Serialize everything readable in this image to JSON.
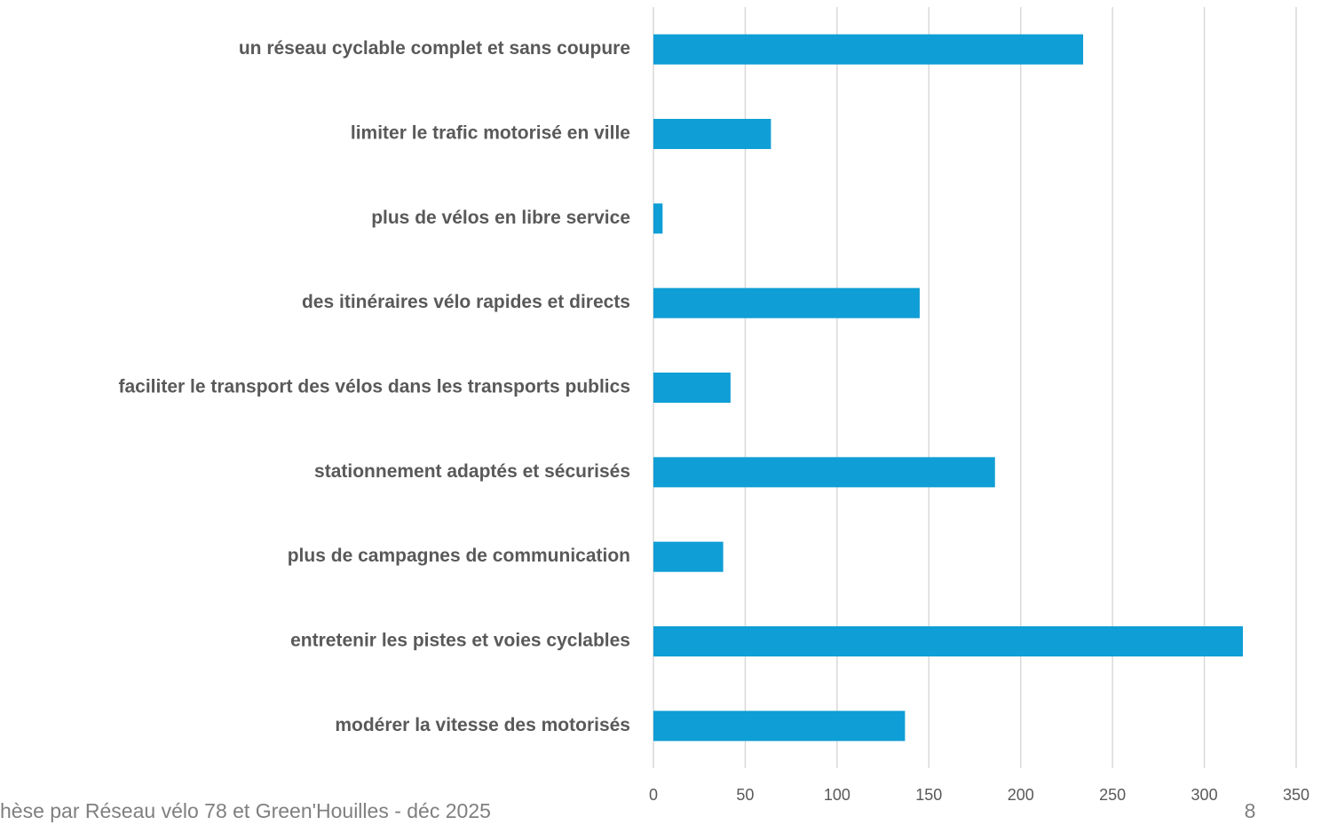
{
  "chart_data": {
    "type": "barh",
    "categories": [
      "un réseau cyclable complet et sans coupure",
      "limiter le trafic motorisé en ville",
      "plus de vélos en libre service",
      "des itinéraires vélo rapides et directs",
      "faciliter le transport des vélos dans les transports publics",
      "stationnement adaptés et sécurisés",
      "plus de campagnes de communication",
      "entretenir les pistes et voies cyclables",
      "modérer la vitesse des motorisés"
    ],
    "values": [
      234,
      64,
      5,
      145,
      42,
      186,
      38,
      321,
      137
    ],
    "color": "#0f9ed5",
    "xlim": [
      0,
      350
    ],
    "xticks": [
      0,
      50,
      100,
      150,
      200,
      250,
      300,
      350
    ],
    "grid": true
  },
  "footer": {
    "text": "hèse par Réseau vélo 78 et Green'Houilles - déc 2025",
    "page_number": "8"
  }
}
